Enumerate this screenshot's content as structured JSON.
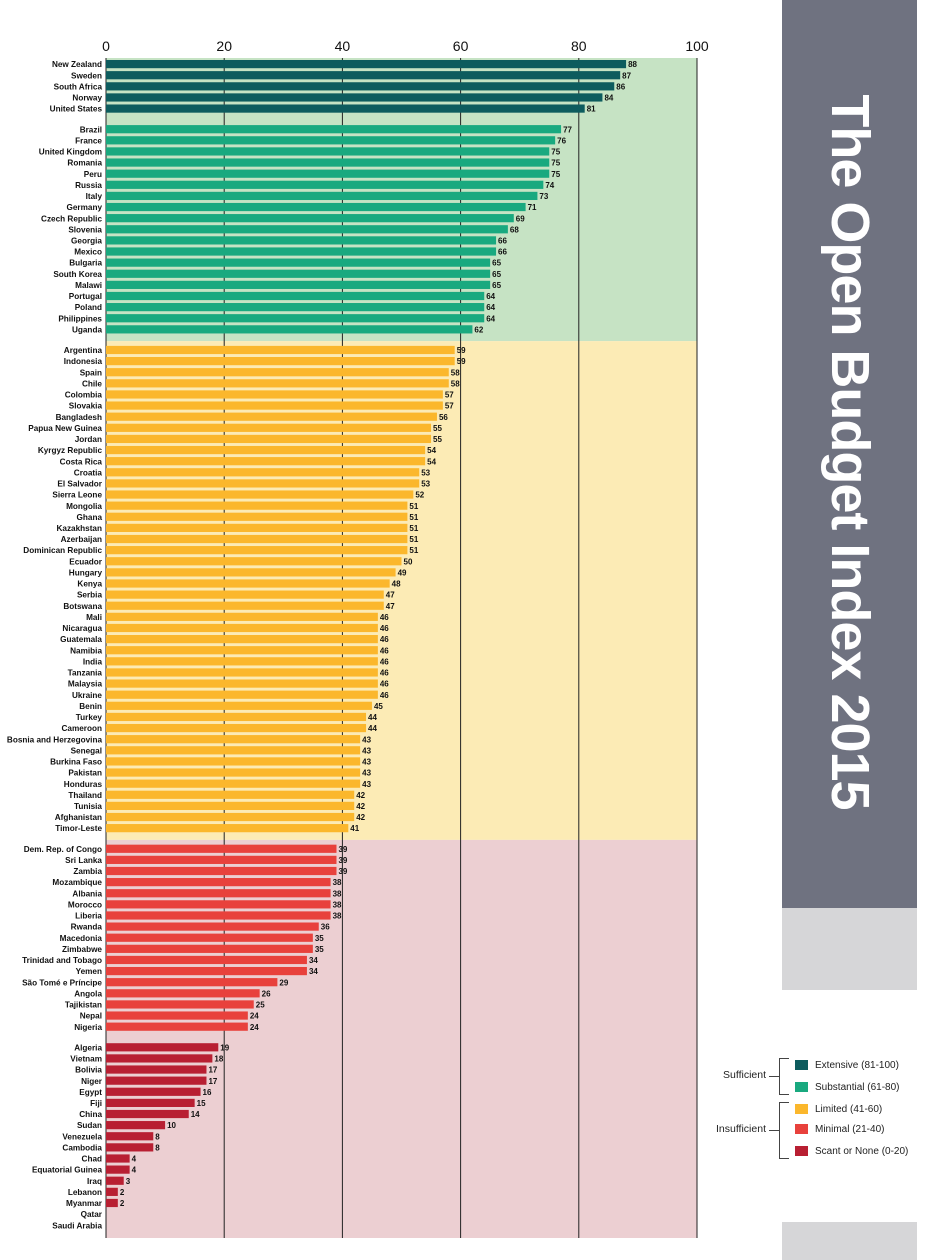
{
  "chart_data": {
    "type": "bar",
    "orientation": "horizontal",
    "title": "The Open Budget Index 2015",
    "xlim": [
      0,
      100
    ],
    "x_ticks": [
      0,
      20,
      40,
      60,
      80,
      100
    ],
    "grid": true,
    "legend_position": "bottom-right",
    "groups": [
      {
        "name": "Extensive (81-100)",
        "color": "#0d5c5e",
        "band": "#c6e3c4",
        "countries": [
          [
            "New Zealand",
            88
          ],
          [
            "Sweden",
            87
          ],
          [
            "South Africa",
            86
          ],
          [
            "Norway",
            84
          ],
          [
            "United States",
            81
          ]
        ]
      },
      {
        "name": "Substantial (61-80)",
        "color": "#19a97f",
        "band": "#c6e3c4",
        "countries": [
          [
            "Brazil",
            77
          ],
          [
            "France",
            76
          ],
          [
            "United Kingdom",
            75
          ],
          [
            "Romania",
            75
          ],
          [
            "Peru",
            75
          ],
          [
            "Russia",
            74
          ],
          [
            "Italy",
            73
          ],
          [
            "Germany",
            71
          ],
          [
            "Czech Republic",
            69
          ],
          [
            "Slovenia",
            68
          ],
          [
            "Georgia",
            66
          ],
          [
            "Mexico",
            66
          ],
          [
            "Bulgaria",
            65
          ],
          [
            "South Korea",
            65
          ],
          [
            "Malawi",
            65
          ],
          [
            "Portugal",
            64
          ],
          [
            "Poland",
            64
          ],
          [
            "Philippines",
            64
          ],
          [
            "Uganda",
            62
          ]
        ]
      },
      {
        "name": "Limited (41-60)",
        "color": "#fbb72c",
        "band": "#fcebb5",
        "countries": [
          [
            "Argentina",
            59
          ],
          [
            "Indonesia",
            59
          ],
          [
            "Spain",
            58
          ],
          [
            "Chile",
            58
          ],
          [
            "Colombia",
            57
          ],
          [
            "Slovakia",
            57
          ],
          [
            "Bangladesh",
            56
          ],
          [
            "Papua New Guinea",
            55
          ],
          [
            "Jordan",
            55
          ],
          [
            "Kyrgyz Republic",
            54
          ],
          [
            "Costa Rica",
            54
          ],
          [
            "Croatia",
            53
          ],
          [
            "El Salvador",
            53
          ],
          [
            "Sierra Leone",
            52
          ],
          [
            "Mongolia",
            51
          ],
          [
            "Ghana",
            51
          ],
          [
            "Kazakhstan",
            51
          ],
          [
            "Azerbaijan",
            51
          ],
          [
            "Dominican Republic",
            51
          ],
          [
            "Ecuador",
            50
          ],
          [
            "Hungary",
            49
          ],
          [
            "Kenya",
            48
          ],
          [
            "Serbia",
            47
          ],
          [
            "Botswana",
            47
          ],
          [
            "Mali",
            46
          ],
          [
            "Nicaragua",
            46
          ],
          [
            "Guatemala",
            46
          ],
          [
            "Namibia",
            46
          ],
          [
            "India",
            46
          ],
          [
            "Tanzania",
            46
          ],
          [
            "Malaysia",
            46
          ],
          [
            "Ukraine",
            46
          ],
          [
            "Benin",
            45
          ],
          [
            "Turkey",
            44
          ],
          [
            "Cameroon",
            44
          ],
          [
            "Bosnia and Herzegovina",
            43
          ],
          [
            "Senegal",
            43
          ],
          [
            "Burkina Faso",
            43
          ],
          [
            "Pakistan",
            43
          ],
          [
            "Honduras",
            43
          ],
          [
            "Thailand",
            42
          ],
          [
            "Tunisia",
            42
          ],
          [
            "Afghanistan",
            42
          ],
          [
            "Timor-Leste",
            41
          ]
        ]
      },
      {
        "name": "Minimal (21-40)",
        "color": "#e8413c",
        "band": "#eccfd2",
        "countries": [
          [
            "Dem. Rep. of Congo",
            39
          ],
          [
            "Sri Lanka",
            39
          ],
          [
            "Zambia",
            39
          ],
          [
            "Mozambique",
            38
          ],
          [
            "Albania",
            38
          ],
          [
            "Morocco",
            38
          ],
          [
            "Liberia",
            38
          ],
          [
            "Rwanda",
            36
          ],
          [
            "Macedonia",
            35
          ],
          [
            "Zimbabwe",
            35
          ],
          [
            "Trinidad and Tobago",
            34
          ],
          [
            "Yemen",
            34
          ],
          [
            "São Tomé e Príncipe",
            29
          ],
          [
            "Angola",
            26
          ],
          [
            "Tajikistan",
            25
          ],
          [
            "Nepal",
            24
          ],
          [
            "Nigeria",
            24
          ]
        ]
      },
      {
        "name": "Scant or None (0-20)",
        "color": "#b81f32",
        "band": "#eccfd2",
        "countries": [
          [
            "Algeria",
            19
          ],
          [
            "Vietnam",
            18
          ],
          [
            "Bolivia",
            17
          ],
          [
            "Niger",
            17
          ],
          [
            "Egypt",
            16
          ],
          [
            "Fiji",
            15
          ],
          [
            "China",
            14
          ],
          [
            "Sudan",
            10
          ],
          [
            "Venezuela",
            8
          ],
          [
            "Cambodia",
            8
          ],
          [
            "Chad",
            4
          ],
          [
            "Equatorial Guinea",
            4
          ],
          [
            "Iraq",
            3
          ],
          [
            "Lebanon",
            2
          ],
          [
            "Myanmar",
            2
          ],
          [
            "Qatar",
            0
          ],
          [
            "Saudi Arabia",
            0
          ]
        ]
      }
    ],
    "legend": {
      "groups": [
        {
          "label": "Sufficient",
          "items": [
            "Extensive (81-100)",
            "Substantial (61-80)"
          ]
        },
        {
          "label": "Insufficient",
          "items": [
            "Limited (41-60)",
            "Minimal (21-40)",
            "Scant or None (0-20)"
          ]
        }
      ]
    }
  },
  "side_title": "The Open Budget Index 2015"
}
